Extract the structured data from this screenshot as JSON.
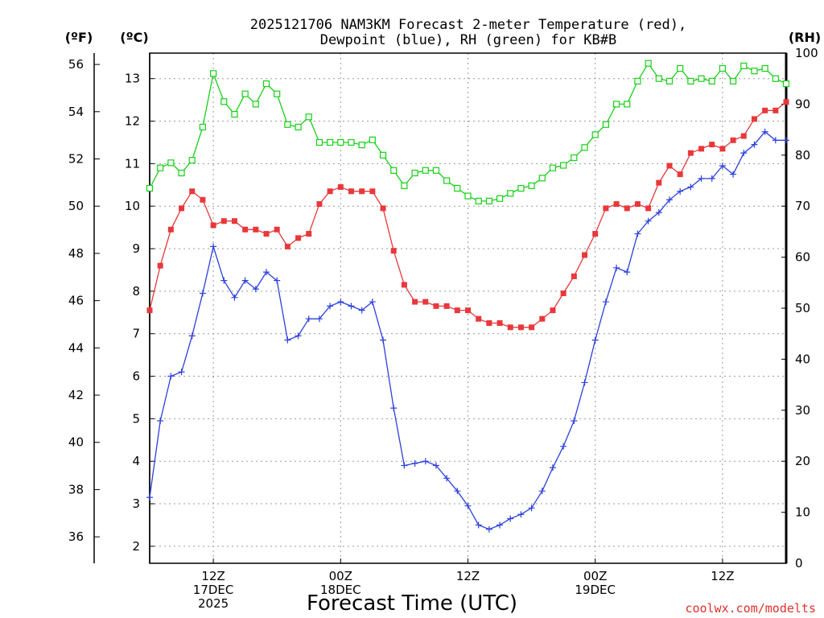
{
  "chart_data": {
    "type": "line",
    "title": [
      "2025121706 NAM3KM Forecast 2-meter Temperature (red),",
      "Dewpoint (blue), RH (green) for KB#B"
    ],
    "xlabel": "Forecast Time (UTC)",
    "credit": "coolwx.com/modelts",
    "units": {
      "fahrenheit": "(ºF)",
      "celsius": "(ºC)",
      "rh": "(RH)"
    },
    "x_hours_range": [
      0,
      60
    ],
    "x_ticks": [
      {
        "hour": 6,
        "lines": [
          "12Z",
          "17DEC",
          "2025"
        ]
      },
      {
        "hour": 18,
        "lines": [
          "00Z",
          "18DEC"
        ]
      },
      {
        "hour": 30,
        "lines": [
          "12Z"
        ]
      },
      {
        "hour": 42,
        "lines": [
          "00Z",
          "19DEC"
        ]
      },
      {
        "hour": 54,
        "lines": [
          "12Z"
        ]
      }
    ],
    "y_celsius": {
      "range": [
        1.6,
        13.6
      ],
      "ticks": [
        2,
        3,
        4,
        5,
        6,
        7,
        8,
        9,
        10,
        11,
        12,
        13
      ]
    },
    "y_fahrenheit": {
      "ticks": [
        36,
        38,
        40,
        42,
        44,
        46,
        48,
        50,
        52,
        54,
        56
      ]
    },
    "y_rh": {
      "range": [
        0,
        100
      ],
      "ticks": [
        0,
        10,
        20,
        30,
        40,
        50,
        60,
        70,
        80,
        90,
        100
      ]
    },
    "grid": true,
    "hours": [
      0,
      1,
      2,
      3,
      4,
      5,
      6,
      7,
      8,
      9,
      10,
      11,
      12,
      13,
      14,
      15,
      16,
      17,
      18,
      19,
      20,
      21,
      22,
      23,
      24,
      25,
      26,
      27,
      28,
      29,
      30,
      31,
      32,
      33,
      34,
      35,
      36,
      37,
      38,
      39,
      40,
      41,
      42,
      43,
      44,
      45,
      46,
      47,
      48,
      49,
      50,
      51,
      52,
      53,
      54,
      55,
      56,
      57,
      58,
      59,
      60
    ],
    "series": [
      {
        "label": "Temperature",
        "unit": "C",
        "color": "#e8383b",
        "marker": "filled-square",
        "values": [
          7.55,
          8.6,
          9.45,
          9.95,
          10.35,
          10.15,
          9.55,
          9.65,
          9.65,
          9.45,
          9.45,
          9.35,
          9.45,
          9.05,
          9.25,
          9.35,
          10.05,
          10.35,
          10.45,
          10.35,
          10.35,
          10.35,
          9.95,
          8.95,
          8.15,
          7.75,
          7.75,
          7.65,
          7.65,
          7.55,
          7.55,
          7.35,
          7.25,
          7.25,
          7.15,
          7.15,
          7.15,
          7.35,
          7.55,
          7.95,
          8.35,
          8.85,
          9.35,
          9.95,
          10.05,
          9.95,
          10.05,
          9.95,
          10.55,
          10.95,
          10.75,
          11.25,
          11.35,
          11.45,
          11.35,
          11.55,
          11.65,
          12.05,
          12.25,
          12.25,
          12.45
        ]
      },
      {
        "label": "Dewpoint",
        "unit": "C",
        "color": "#2b40dd",
        "marker": "plus",
        "values": [
          3.15,
          4.95,
          6.0,
          6.1,
          6.95,
          7.95,
          9.05,
          8.25,
          7.85,
          8.25,
          8.05,
          8.45,
          8.25,
          6.85,
          6.95,
          7.35,
          7.35,
          7.65,
          7.75,
          7.65,
          7.55,
          7.75,
          6.85,
          5.25,
          3.9,
          3.95,
          4.0,
          3.9,
          3.6,
          3.3,
          2.95,
          2.5,
          2.4,
          2.5,
          2.65,
          2.75,
          2.9,
          3.3,
          3.85,
          4.35,
          4.95,
          5.85,
          6.85,
          7.75,
          8.55,
          8.45,
          9.35,
          9.65,
          9.85,
          10.15,
          10.35,
          10.45,
          10.65,
          10.65,
          10.95,
          10.75,
          11.25,
          11.45,
          11.75,
          11.55,
          11.55
        ]
      },
      {
        "label": "RH",
        "unit": "%",
        "color": "#16d016",
        "marker": "open-square",
        "values": [
          73.5,
          77.5,
          78.5,
          76.5,
          79,
          85.5,
          96,
          90.5,
          88,
          92,
          90,
          94,
          92,
          86,
          85.5,
          87.5,
          82.5,
          82.5,
          82.5,
          82.5,
          82,
          83,
          80,
          77,
          74,
          76.5,
          77,
          77,
          75,
          73.5,
          72,
          71,
          71,
          71.5,
          72.5,
          73.5,
          74,
          75.5,
          77.5,
          78,
          79.5,
          81.5,
          84,
          86,
          90,
          90,
          94.5,
          98,
          95,
          94.5,
          97,
          94.5,
          95,
          94.5,
          97,
          94.5,
          97.5,
          96.5,
          97,
          95,
          94
        ]
      }
    ]
  }
}
